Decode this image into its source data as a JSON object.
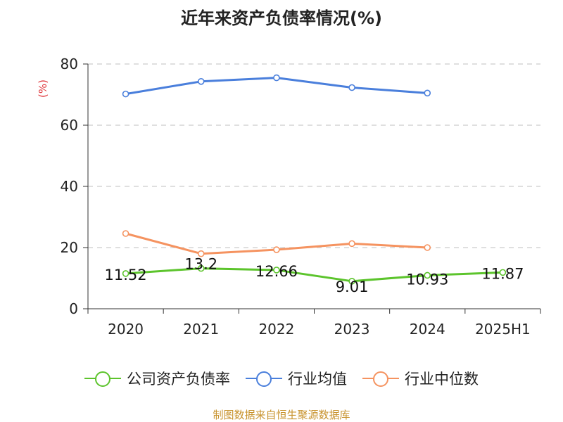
{
  "chart_data": {
    "type": "line",
    "title": "近年来资产负债率情况(%)",
    "ylabel": "(%)",
    "categories": [
      "2020",
      "2021",
      "2022",
      "2023",
      "2024",
      "2025H1"
    ],
    "ylim": [
      0,
      80
    ],
    "yticks": [
      0,
      20,
      40,
      60,
      80
    ],
    "grid": true,
    "legend_position": "bottom",
    "series": [
      {
        "name": "公司资产负债率",
        "color": "#5cc42c",
        "values": [
          11.52,
          13.2,
          12.66,
          9.01,
          10.93,
          11.87
        ],
        "labels": [
          "11.52",
          "13.2",
          "12.66",
          "9.01",
          "10.93",
          "11.87"
        ]
      },
      {
        "name": "行业均值",
        "color": "#4a7fdc",
        "values": [
          70.2,
          74.3,
          75.5,
          72.3,
          70.5,
          null
        ]
      },
      {
        "name": "行业中位数",
        "color": "#f59360",
        "values": [
          24.6,
          18.0,
          19.3,
          21.3,
          20.0,
          null
        ]
      }
    ]
  },
  "source": "制图数据来自恒生聚源数据库"
}
